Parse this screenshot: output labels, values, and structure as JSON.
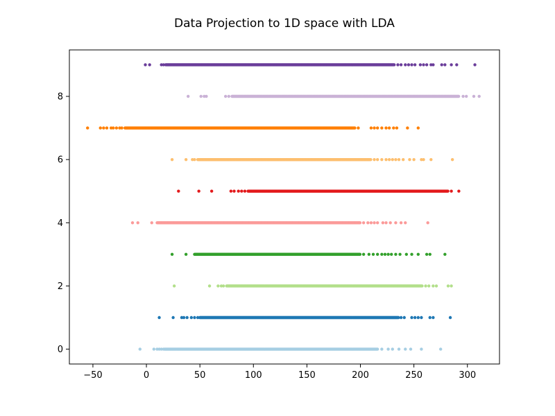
{
  "chart_data": {
    "type": "scatter",
    "title": "Data Projection to 1D space with LDA",
    "xlabel": "",
    "ylabel": "",
    "xlim": [
      -72,
      330
    ],
    "ylim": [
      -0.47,
      9.47
    ],
    "xticks": [
      -50,
      0,
      50,
      100,
      150,
      200,
      250,
      300
    ],
    "yticks": [
      0,
      2,
      4,
      6,
      8
    ],
    "grid": false,
    "legend": "none",
    "series": [
      {
        "y": 0,
        "color": "#a6cee3",
        "dense": [
          17,
          216
        ],
        "outliers": [
          -6,
          7,
          10,
          12,
          14,
          16,
          220,
          226,
          230,
          236,
          242,
          247,
          257,
          275
        ]
      },
      {
        "y": 1,
        "color": "#1f78b4",
        "dense": [
          50,
          236
        ],
        "outliers": [
          12,
          25,
          33,
          35,
          38,
          42,
          45,
          48,
          238,
          241,
          248,
          251,
          254,
          257,
          265,
          268,
          284
        ]
      },
      {
        "y": 2,
        "color": "#b2df8a",
        "dense": [
          75,
          258
        ],
        "outliers": [
          26,
          59,
          67,
          70,
          72,
          261,
          264,
          268,
          271,
          282,
          285
        ]
      },
      {
        "y": 3,
        "color": "#33a02c",
        "dense": [
          45,
          200
        ],
        "outliers": [
          24,
          37,
          203,
          208,
          212,
          216,
          220,
          223,
          226,
          229,
          233,
          237,
          243,
          248,
          254,
          262,
          265,
          279
        ]
      },
      {
        "y": 4,
        "color": "#fb9a99",
        "dense": [
          10,
          200
        ],
        "outliers": [
          -13,
          -8,
          5,
          203,
          207,
          210,
          213,
          216,
          221,
          224,
          228,
          233,
          238,
          242,
          263
        ]
      },
      {
        "y": 5,
        "color": "#e31a1c",
        "dense": [
          95,
          282
        ],
        "outliers": [
          30,
          49,
          61,
          79,
          82,
          86,
          89,
          92,
          285,
          292
        ]
      },
      {
        "y": 6,
        "color": "#fdbf6f",
        "dense": [
          48,
          210
        ],
        "outliers": [
          24,
          37,
          43,
          45,
          213,
          216,
          220,
          224,
          227,
          230,
          233,
          236,
          240,
          246,
          250,
          257,
          259,
          266,
          286
        ]
      },
      {
        "y": 7,
        "color": "#ff7f00",
        "dense": [
          -20,
          195
        ],
        "outliers": [
          -55,
          -43,
          -40,
          -37,
          -33,
          -31,
          -28,
          -25,
          -23,
          198,
          210,
          213,
          216,
          220,
          224,
          227,
          231,
          234,
          244,
          254
        ]
      },
      {
        "y": 8,
        "color": "#cab2d6",
        "dense": [
          80,
          292
        ],
        "outliers": [
          39,
          51,
          54,
          56,
          74,
          77,
          296,
          299,
          306,
          311
        ]
      },
      {
        "y": 9,
        "color": "#6a3d9a",
        "dense": [
          18,
          232
        ],
        "outliers": [
          -1,
          3,
          14,
          16,
          235,
          238,
          242,
          245,
          248,
          251,
          256,
          259,
          262,
          266,
          268,
          276,
          279,
          285,
          290,
          307
        ]
      }
    ]
  }
}
